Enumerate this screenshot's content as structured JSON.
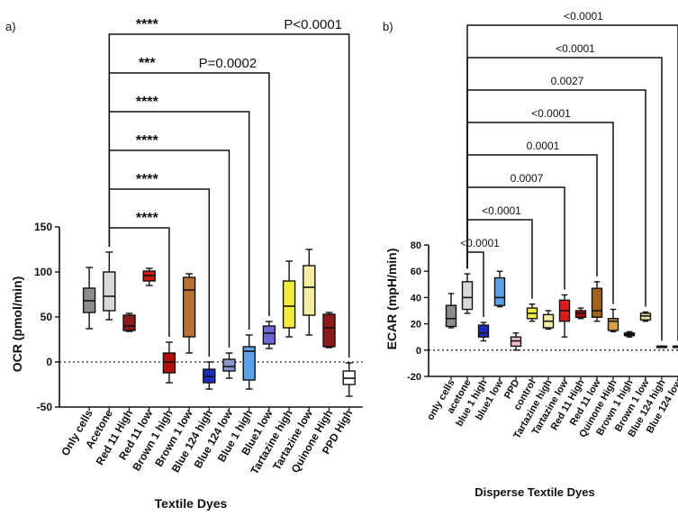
{
  "chart_data": [
    {
      "type": "boxplot",
      "panel_label": "a)",
      "ylabel": "OCR (pmol/min)",
      "xlabel": "Textile Dyes",
      "ylim": [
        -50,
        150
      ],
      "yticks": [
        -50,
        0,
        50,
        100,
        150
      ],
      "zero_line": "dotted",
      "categories": [
        "Only cells",
        "Acetone",
        "Red 11 High",
        "Red 11 low",
        "Brown 1 high",
        "Brown 1 low",
        "Blue 124 high",
        "Blue 124 low",
        "Blue 1 high",
        "Blue1 low",
        "Tartazine high",
        "Tartazine low",
        "Quinone High",
        "PPD High"
      ],
      "boxes": [
        {
          "min": 37,
          "q1": 55,
          "median": 68,
          "q3": 82,
          "max": 105,
          "color": "#8c8c8c"
        },
        {
          "min": 47,
          "q1": 57,
          "median": 73,
          "q3": 100,
          "max": 122,
          "color": "#d9d9d9"
        },
        {
          "min": 34,
          "q1": 35,
          "median": 40,
          "q3": 52,
          "max": 54,
          "color": "#8b1a1a"
        },
        {
          "min": 85,
          "q1": 90,
          "median": 96,
          "q3": 101,
          "max": 104,
          "color": "#cc1a1a"
        },
        {
          "min": -23,
          "q1": -12,
          "median": 0,
          "q3": 10,
          "max": 22,
          "color": "#b30d0d"
        },
        {
          "min": 10,
          "q1": 28,
          "median": 80,
          "q3": 94,
          "max": 98,
          "color": "#b87333"
        },
        {
          "min": -30,
          "q1": -23,
          "median": -16,
          "q3": -8,
          "max": 0,
          "color": "#1a2fbf"
        },
        {
          "min": -18,
          "q1": -10,
          "median": -5,
          "q3": 3,
          "max": 10,
          "color": "#8a96cc"
        },
        {
          "min": -30,
          "q1": -20,
          "median": 12,
          "q3": 17,
          "max": 30,
          "color": "#5da1e8"
        },
        {
          "min": 15,
          "q1": 20,
          "median": 32,
          "q3": 40,
          "max": 45,
          "color": "#6f66d6"
        },
        {
          "min": 28,
          "q1": 38,
          "median": 62,
          "q3": 90,
          "max": 112,
          "color": "#f2ec3a"
        },
        {
          "min": 30,
          "q1": 52,
          "median": 83,
          "q3": 107,
          "max": 125,
          "color": "#f4efa0"
        },
        {
          "min": 16,
          "q1": 17,
          "median": 38,
          "q3": 53,
          "max": 55,
          "color": "#8b1a1a"
        },
        {
          "min": -38,
          "q1": -25,
          "median": -18,
          "q3": -10,
          "max": -1,
          "color": "#ffffff"
        }
      ],
      "comparisons": [
        {
          "from": "Acetone",
          "to": "Brown 1 high",
          "stars": "****",
          "p": ""
        },
        {
          "from": "Acetone",
          "to": "Blue 124 high",
          "stars": "****",
          "p": ""
        },
        {
          "from": "Acetone",
          "to": "Blue 124 low",
          "stars": "****",
          "p": ""
        },
        {
          "from": "Acetone",
          "to": "Blue 1 high",
          "stars": "****",
          "p": ""
        },
        {
          "from": "Acetone",
          "to": "Blue1 low",
          "stars": "***",
          "p": "P=0.0002"
        },
        {
          "from": "Acetone",
          "to": "PPD High",
          "stars": "****",
          "p": "P<0.0001"
        }
      ]
    },
    {
      "type": "boxplot",
      "panel_label": "b)",
      "ylabel": "ECAR (mpH/min)",
      "xlabel": "Disperse Textile Dyes",
      "ylim": [
        -20,
        80
      ],
      "yticks": [
        -20,
        0,
        20,
        40,
        60,
        80
      ],
      "zero_line": "dotted",
      "categories": [
        "only cells",
        "acetone",
        "blue 1 high",
        "blue1 low",
        "PPD",
        "control",
        "Tartazine high",
        "Tartazine low",
        "Red 11 High",
        "Red 11 low",
        "Quinone High",
        "Brown 1 high",
        "Brown 1 low",
        "Blue 124 high",
        "Blue 124 low"
      ],
      "boxes": [
        {
          "min": 17,
          "q1": 18,
          "median": 24,
          "q3": 34,
          "max": 43,
          "color": "#8c8c8c"
        },
        {
          "min": 28,
          "q1": 31,
          "median": 40,
          "q3": 52,
          "max": 58,
          "color": "#d9d9d9"
        },
        {
          "min": 7,
          "q1": 10,
          "median": 13,
          "q3": 19,
          "max": 21,
          "color": "#1a2fbf"
        },
        {
          "min": 33,
          "q1": 34,
          "median": 40,
          "q3": 55,
          "max": 60,
          "color": "#5da1e8"
        },
        {
          "min": 0,
          "q1": 3,
          "median": 7,
          "q3": 10,
          "max": 13,
          "color": "#f4b8d2"
        },
        {
          "min": 22,
          "q1": 24,
          "median": 28,
          "q3": 32,
          "max": 35,
          "color": "#f2ec3a"
        },
        {
          "min": 16,
          "q1": 17,
          "median": 22,
          "q3": 27,
          "max": 30,
          "color": "#f4efa0"
        },
        {
          "min": 10,
          "q1": 22,
          "median": 30,
          "q3": 38,
          "max": 42,
          "color": "#e01a1a"
        },
        {
          "min": 24,
          "q1": 25,
          "median": 28,
          "q3": 30,
          "max": 32,
          "color": "#b30d0d"
        },
        {
          "min": 22,
          "q1": 25,
          "median": 30,
          "q3": 47,
          "max": 52,
          "color": "#a0641e"
        },
        {
          "min": 14,
          "q1": 15,
          "median": 22,
          "q3": 24,
          "max": 31,
          "color": "#d4a04a"
        },
        {
          "min": 10,
          "q1": 11,
          "median": 12,
          "q3": 13,
          "max": 14,
          "color": "#222222"
        },
        {
          "min": 22,
          "q1": 23,
          "median": 26,
          "q3": 28,
          "max": 29,
          "color": "#e8e4a0"
        },
        {
          "min": 2,
          "q1": 2,
          "median": 3,
          "q3": 3,
          "max": 3,
          "color": "#1a2fbf"
        },
        {
          "min": 2,
          "q1": 2,
          "median": 3,
          "q3": 3,
          "max": 3,
          "color": "#8a96cc"
        }
      ],
      "comparisons": [
        {
          "from": "acetone",
          "to": "blue 1 high",
          "label": "<0.0001"
        },
        {
          "from": "acetone",
          "to": "control",
          "label": "<0.0001"
        },
        {
          "from": "acetone",
          "to": "Tartazine low",
          "label": "0.0007"
        },
        {
          "from": "acetone",
          "to": "Red 11 low",
          "label": "0.0001"
        },
        {
          "from": "acetone",
          "to": "Quinone High",
          "label": "<0.0001"
        },
        {
          "from": "acetone",
          "to": "Brown 1 low",
          "label": "0.0027"
        },
        {
          "from": "acetone",
          "to": "Blue 124 high",
          "label": "<0.0001"
        },
        {
          "from": "acetone",
          "to": "Blue 124 low",
          "label": "<0.0001"
        }
      ]
    }
  ]
}
